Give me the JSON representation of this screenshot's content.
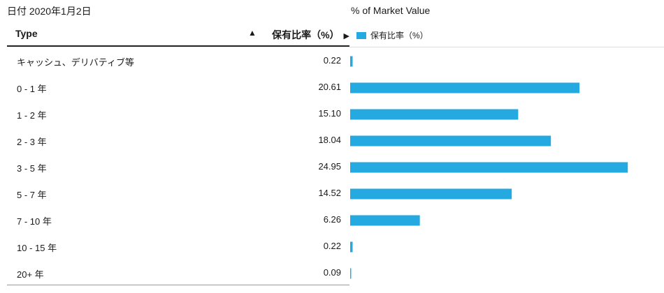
{
  "date_label": "日付 2020年1月2日",
  "table": {
    "col_type": "Type",
    "sort_indicator": "▲",
    "col_value": "保有比率（%）",
    "col_value_arrow": "▶"
  },
  "colors": {
    "bar": "#24a9e0"
  },
  "chart_data": {
    "type": "bar",
    "orientation": "horizontal",
    "title": "% of Market Value",
    "legend": [
      "保有比率（%）"
    ],
    "legend_position": "top-left",
    "categories": [
      "キャッシュ、デリバティブ等",
      "0 - 1 年",
      "1 - 2 年",
      "2 - 3 年",
      "3 - 5 年",
      "5 - 7 年",
      "7 - 10 年",
      "10 - 15 年",
      "20+ 年"
    ],
    "value_labels": [
      "0.22",
      "20.61",
      "15.10",
      "18.04",
      "24.95",
      "14.52",
      "6.26",
      "0.22",
      "0.09"
    ],
    "values": [
      0.22,
      20.61,
      15.1,
      18.04,
      24.95,
      14.52,
      6.26,
      0.22,
      0.09
    ],
    "series": [
      {
        "name": "保有比率（%）",
        "values": [
          0.22,
          20.61,
          15.1,
          18.04,
          24.95,
          14.52,
          6.26,
          0.22,
          0.09
        ]
      }
    ],
    "xlim": [
      0,
      25
    ],
    "grid": false
  }
}
